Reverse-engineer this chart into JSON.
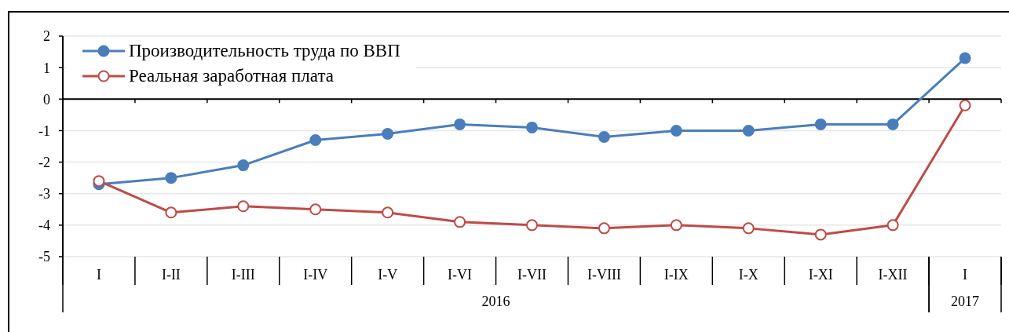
{
  "chart_data": {
    "type": "line",
    "categories": [
      "I",
      "I-II",
      "I-III",
      "I-IV",
      "I-V",
      "I-VI",
      "I-VII",
      "I-VIII",
      "I-IX",
      "I-X",
      "I-XI",
      "I-XII",
      "I"
    ],
    "series": [
      {
        "name": "Производительность труда по ВВП",
        "color": "#4a7ebb",
        "values": [
          -2.7,
          -2.5,
          -2.1,
          -1.3,
          -1.1,
          -0.8,
          -0.9,
          -1.2,
          -1.0,
          -1.0,
          -0.8,
          -0.8,
          1.3
        ]
      },
      {
        "name": "Реальная заработная плата",
        "color": "#be4b48",
        "values": [
          -2.6,
          -3.6,
          -3.4,
          -3.5,
          -3.6,
          -3.9,
          -4.0,
          -4.1,
          -4.0,
          -4.1,
          -4.3,
          -4.0,
          -0.2
        ]
      }
    ],
    "ylim": [
      -5,
      2
    ],
    "yticks": [
      -5,
      -4,
      -3,
      -2,
      -1,
      0,
      1,
      2
    ],
    "grid": "y",
    "legend": "top left",
    "marker": "circle",
    "line_style": "solid",
    "annotations": [
      "2016",
      "2017"
    ]
  }
}
